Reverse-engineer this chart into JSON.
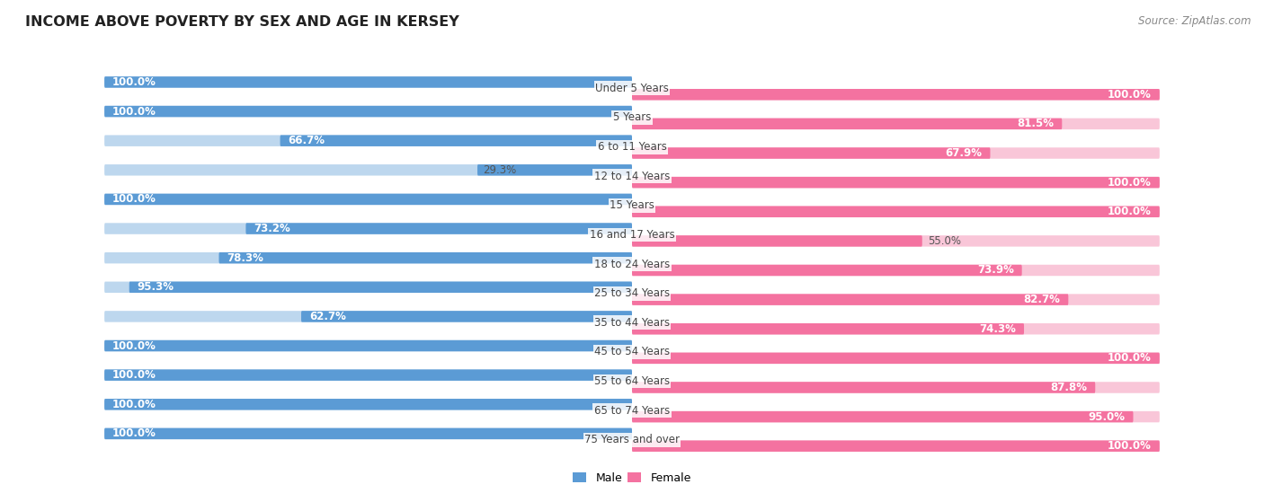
{
  "title": "INCOME ABOVE POVERTY BY SEX AND AGE IN KERSEY",
  "source": "Source: ZipAtlas.com",
  "categories": [
    "Under 5 Years",
    "5 Years",
    "6 to 11 Years",
    "12 to 14 Years",
    "15 Years",
    "16 and 17 Years",
    "18 to 24 Years",
    "25 to 34 Years",
    "35 to 44 Years",
    "45 to 54 Years",
    "55 to 64 Years",
    "65 to 74 Years",
    "75 Years and over"
  ],
  "male_values": [
    100.0,
    100.0,
    66.7,
    29.3,
    100.0,
    73.2,
    78.3,
    95.3,
    62.7,
    100.0,
    100.0,
    100.0,
    100.0
  ],
  "female_values": [
    100.0,
    81.5,
    67.9,
    100.0,
    100.0,
    55.0,
    73.9,
    82.7,
    74.3,
    100.0,
    87.8,
    95.0,
    100.0
  ],
  "male_color": "#5b9bd5",
  "male_color_light": "#bdd7ee",
  "female_color": "#f472a0",
  "female_color_light": "#f9c6d8",
  "bg_color": "#ffffff",
  "row_bg_color": "#f0f0f0",
  "title_fontsize": 11.5,
  "label_fontsize": 8.5,
  "value_fontsize": 8.5,
  "legend_fontsize": 9,
  "source_fontsize": 8.5
}
